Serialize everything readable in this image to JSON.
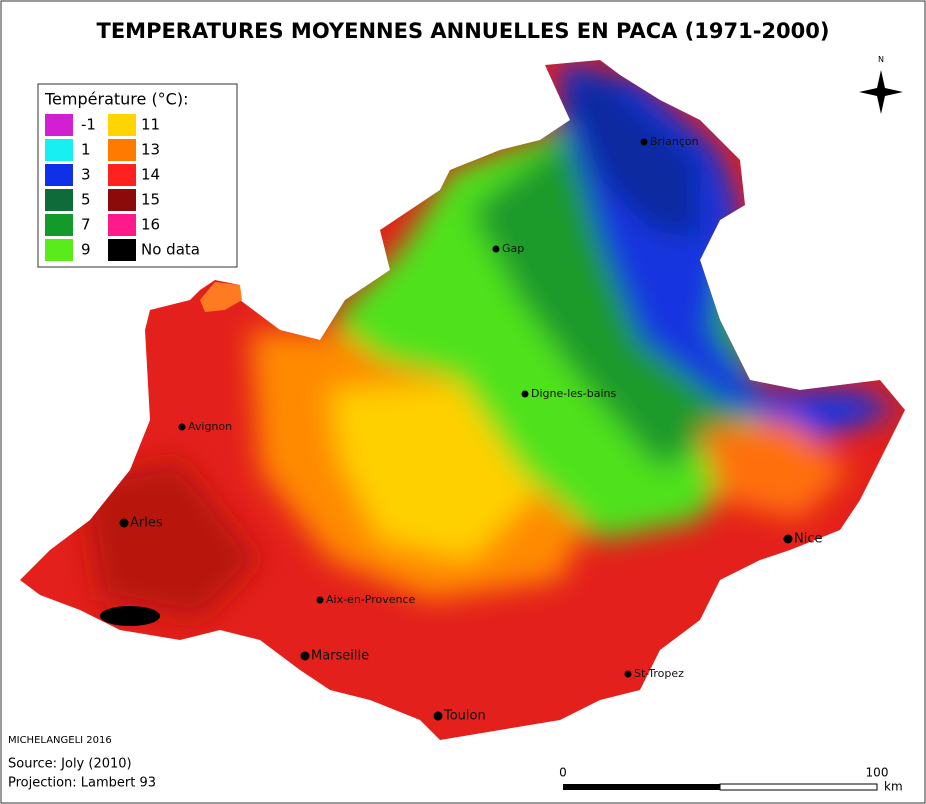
{
  "title": "TEMPERATURES MOYENNES ANNUELLES EN PACA (1971-2000)",
  "legend": {
    "title": "Température (°C):",
    "items": [
      {
        "label": "-1",
        "color": "#d21fd2"
      },
      {
        "label": "1",
        "color": "#17f0f0"
      },
      {
        "label": "3",
        "color": "#1030e8"
      },
      {
        "label": "5",
        "color": "#0f6b3a"
      },
      {
        "label": "7",
        "color": "#139a2a"
      },
      {
        "label": "9",
        "color": "#5aeb1a"
      },
      {
        "label": "11",
        "color": "#ffd400"
      },
      {
        "label": "13",
        "color": "#ff7a00"
      },
      {
        "label": "14",
        "color": "#ff2020"
      },
      {
        "label": "15",
        "color": "#8b0a0a"
      },
      {
        "label": "16",
        "color": "#ff1a8c"
      },
      {
        "label": "No data",
        "color": "#000000"
      }
    ]
  },
  "cities": [
    "Briançon",
    "Gap",
    "Digne-les-bains",
    "Avignon",
    "Arles",
    "Nice",
    "Aix-en-Provence",
    "Marseille",
    "St-Tropez",
    "Toulon"
  ],
  "compass": "N",
  "scale": {
    "start": "0",
    "end": "100",
    "unit": "km"
  },
  "credits": {
    "author": "MICHELANGELI 2016",
    "source": "Source: Joly (2010)",
    "projection": "Projection: Lambert 93"
  }
}
